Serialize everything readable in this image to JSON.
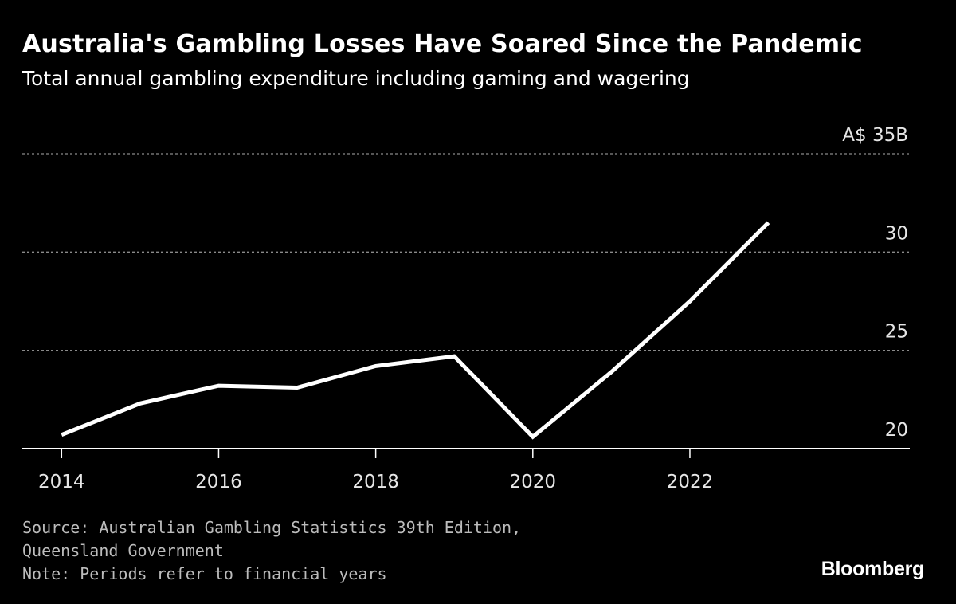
{
  "header": {
    "title": "Australia's Gambling Losses Have Soared Since the Pandemic",
    "subtitle": "Total annual gambling expenditure including gaming and wagering"
  },
  "footer": {
    "source_line1": "Source: Australian Gambling Statistics 39th Edition,",
    "source_line2": "Queensland Government",
    "note": "Note: Periods refer to financial years"
  },
  "brand": {
    "name": "Bloomberg"
  },
  "chart_data": {
    "type": "line",
    "title": "Australia's Gambling Losses Have Soared Since the Pandemic",
    "subtitle": "Total annual gambling expenditure including gaming and wagering",
    "x": [
      2014,
      2015,
      2016,
      2017,
      2018,
      2019,
      2020,
      2021,
      2022,
      2023
    ],
    "series": [
      {
        "values": [
          20.7,
          22.3,
          23.2,
          23.1,
          24.2,
          24.7,
          20.6,
          23.9,
          27.5,
          31.5
        ],
        "color": "#ffffff"
      }
    ],
    "xlim": [
      2013.5,
      2024.8
    ],
    "ylim": [
      20,
      35
    ],
    "x_ticks": [
      2014,
      2016,
      2018,
      2020,
      2022
    ],
    "x_tick_labels": [
      "2014",
      "2016",
      "2018",
      "2020",
      "2022"
    ],
    "y_ticks": [
      20,
      25,
      30,
      35
    ],
    "y_tick_labels": [
      "20",
      "25",
      "30",
      "A$ 35B"
    ],
    "y_axis_position": "right",
    "grid": true,
    "background": "#000000",
    "gridline_color": "#8a8a8a",
    "axis_color": "#ffffff"
  }
}
